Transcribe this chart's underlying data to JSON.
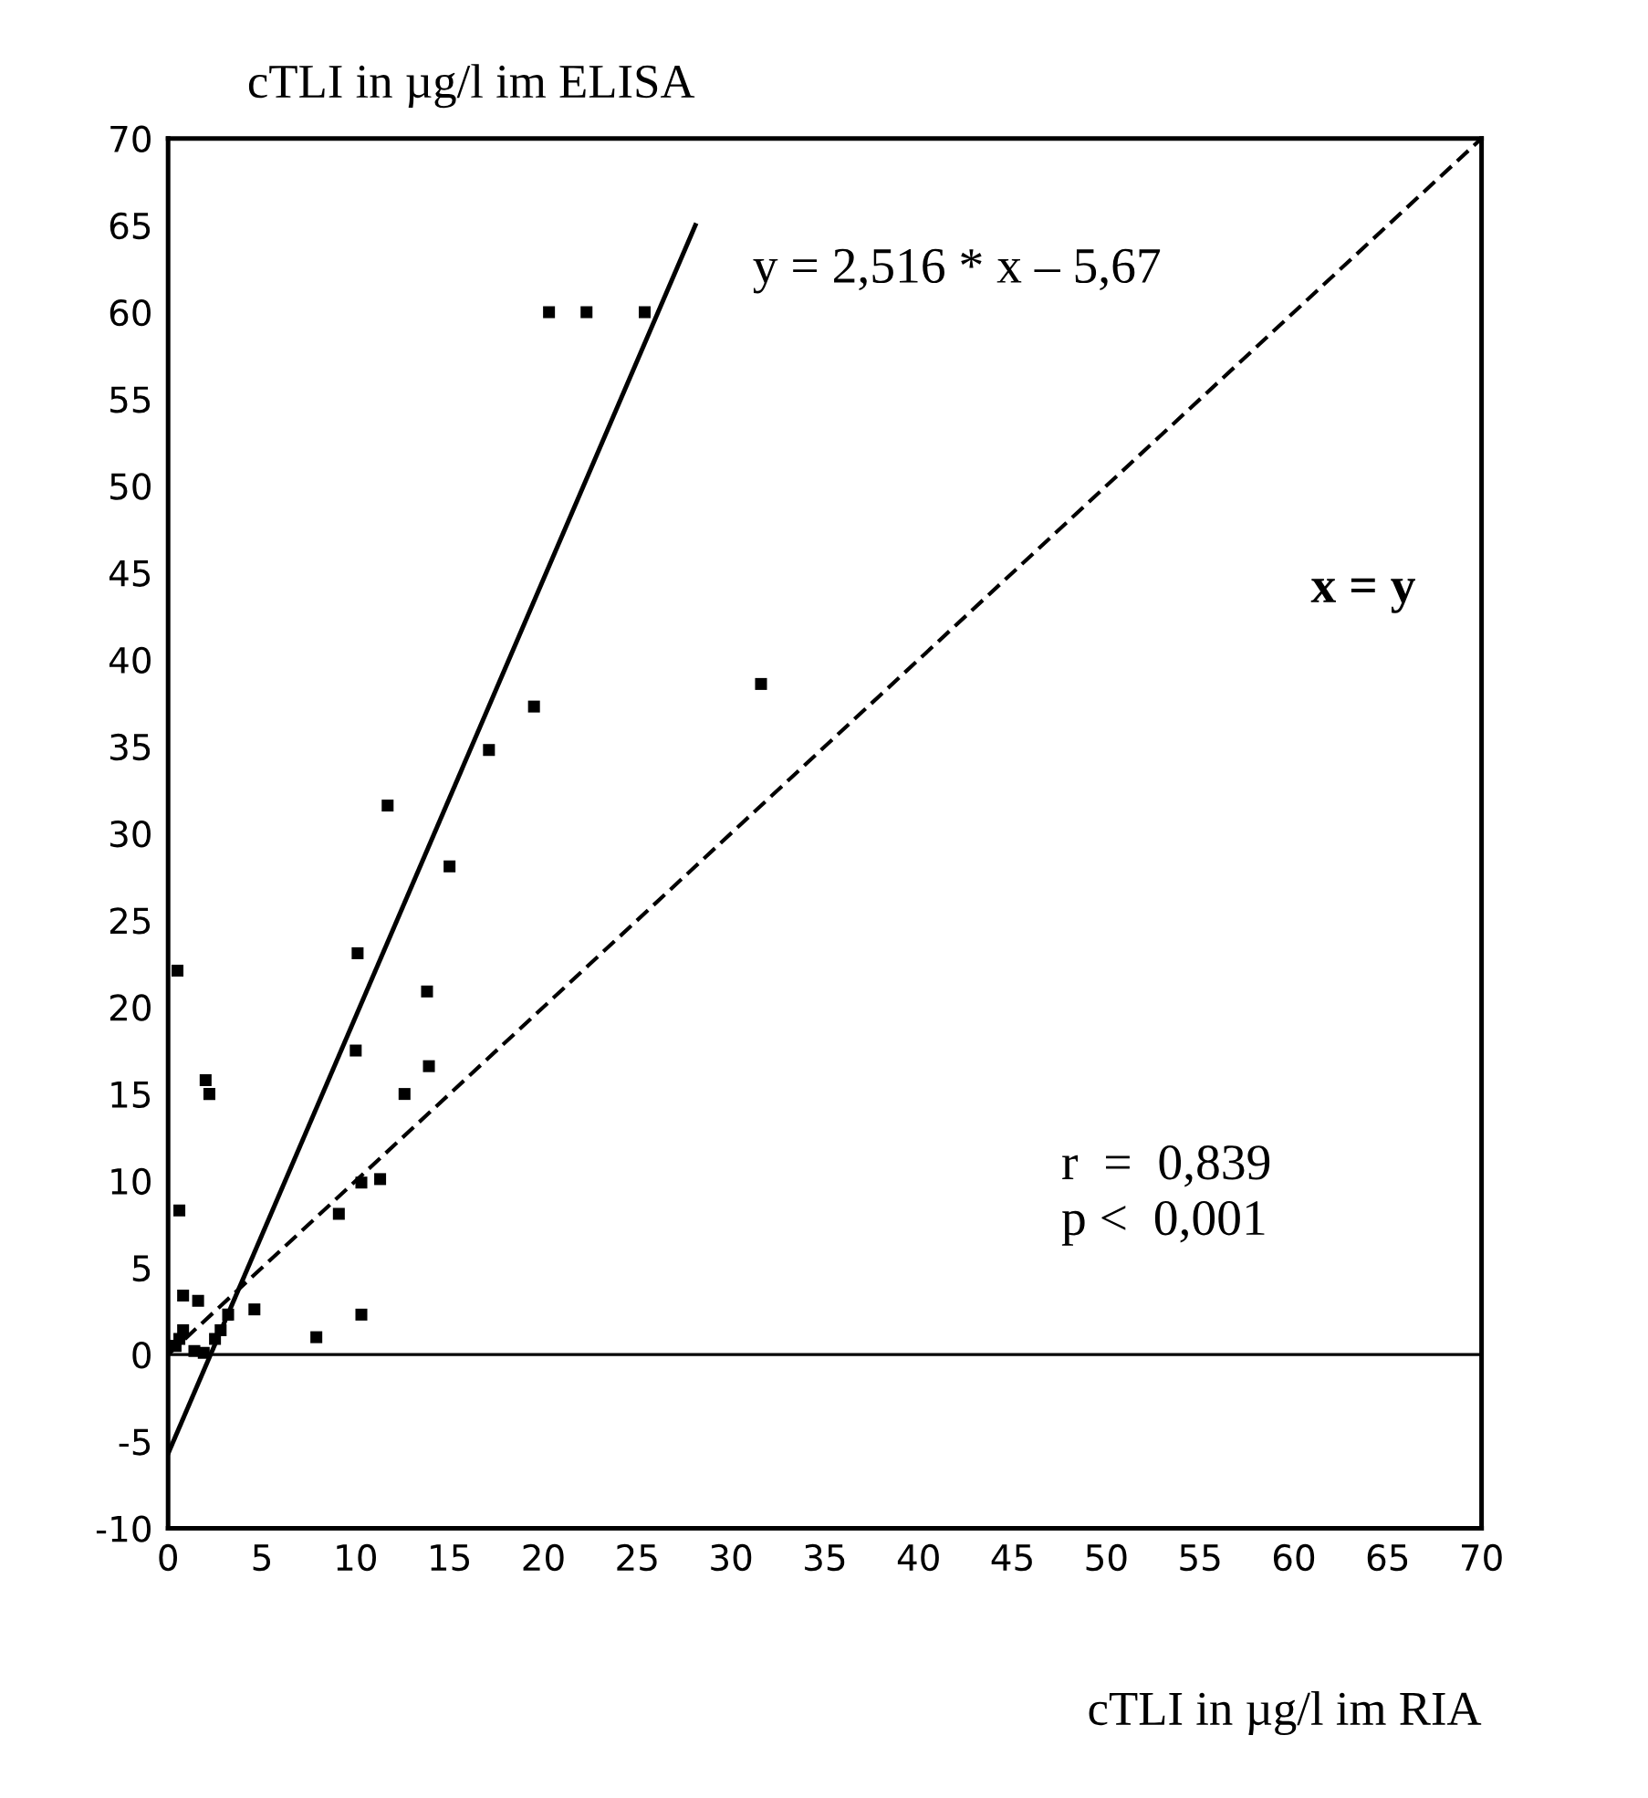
{
  "chart_data": {
    "type": "scatter",
    "xlabel": "cTLI in µg/l im RIA",
    "ylabel": "cTLI in µg/l im ELISA",
    "series": [
      {
        "color": "#000000",
        "marker": "square",
        "x": [
          20.3,
          22.3,
          25.4,
          31.6,
          19.5,
          17.1,
          11.7,
          15.0,
          10.1,
          0.5,
          13.8,
          10.0,
          13.9,
          2.0,
          2.2,
          12.6,
          11.3,
          10.3,
          9.1,
          0.6,
          0.8,
          1.6,
          4.6,
          10.3,
          7.9,
          3.2,
          2.8,
          2.5,
          0.8,
          0.6,
          0.4,
          1.4,
          1.9
        ],
        "values": [
          60,
          60,
          60,
          38.6,
          37.3,
          34.8,
          31.6,
          28.1,
          23.1,
          22.1,
          20.9,
          17.5,
          16.6,
          15.8,
          15.0,
          15.0,
          10.1,
          9.9,
          8.1,
          8.3,
          3.4,
          3.1,
          2.6,
          2.3,
          1.0,
          2.3,
          1.4,
          0.9,
          1.4,
          0.9,
          0.5,
          0.2,
          0.1
        ]
      },
      {
        "type": "line",
        "color": "#000000",
        "line_style": "solid",
        "x": [
          0,
          28.1
        ],
        "values": [
          -5.7,
          65
        ]
      },
      {
        "type": "line",
        "color": "#000000",
        "line_style": "dashed",
        "x": [
          0,
          70
        ],
        "values": [
          0,
          70
        ]
      }
    ],
    "ref_lines": [
      {
        "axis": "y",
        "value": 0,
        "color": "#000000",
        "line_style": "solid"
      }
    ],
    "annotations": [
      "y = 2,516 * x – 5,67",
      "x = y",
      "r  =  0,839",
      "p <  0,001"
    ],
    "xlim": [
      0,
      70
    ],
    "ylim": [
      -10,
      70
    ],
    "xticks": [
      0,
      5,
      10,
      15,
      20,
      25,
      30,
      35,
      40,
      45,
      50,
      55,
      60,
      65,
      70
    ],
    "yticks": [
      -10,
      -5,
      0,
      5,
      10,
      15,
      20,
      25,
      30,
      35,
      40,
      45,
      50,
      55,
      60,
      65,
      70
    ],
    "grid": false,
    "legend": false
  }
}
